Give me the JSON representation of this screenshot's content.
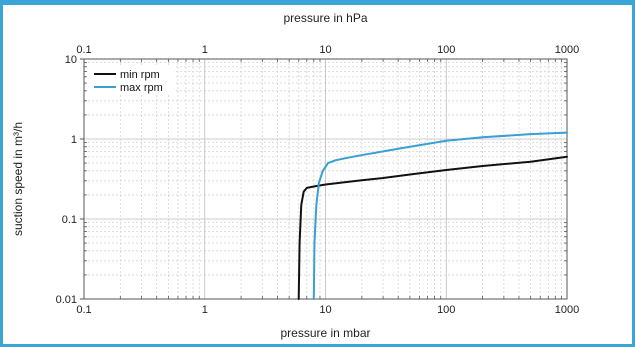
{
  "chart_data": {
    "type": "line",
    "x_scale": "log",
    "y_scale": "log",
    "xlim": [
      0.1,
      1000
    ],
    "ylim": [
      0.01,
      10
    ],
    "xlabel_bottom": "pressure in mbar",
    "xlabel_top": "pressure in hPa",
    "ylabel": "suction speed in m³/h",
    "x_ticks": [
      0.1,
      1,
      10,
      100,
      1000
    ],
    "x_tick_labels": [
      "0.1",
      "1",
      "10",
      "100",
      "1000"
    ],
    "y_ticks": [
      0.01,
      0.1,
      1,
      10
    ],
    "y_tick_labels": [
      "0.01",
      "0.1",
      "1",
      "10"
    ],
    "grid": true,
    "legend_placement": "top-left",
    "series": [
      {
        "name": "min rpm",
        "color": "#111111",
        "points": [
          [
            6.0,
            0.01
          ],
          [
            6.1,
            0.05
          ],
          [
            6.3,
            0.15
          ],
          [
            6.6,
            0.22
          ],
          [
            7.0,
            0.245
          ],
          [
            8.0,
            0.255
          ],
          [
            10,
            0.27
          ],
          [
            15,
            0.29
          ],
          [
            20,
            0.305
          ],
          [
            30,
            0.325
          ],
          [
            50,
            0.36
          ],
          [
            100,
            0.41
          ],
          [
            200,
            0.46
          ],
          [
            500,
            0.52
          ],
          [
            1000,
            0.6
          ]
        ]
      },
      {
        "name": "max rpm",
        "color": "#3a9fd4",
        "points": [
          [
            8.0,
            0.01
          ],
          [
            8.1,
            0.05
          ],
          [
            8.4,
            0.15
          ],
          [
            8.8,
            0.28
          ],
          [
            9.5,
            0.4
          ],
          [
            10.5,
            0.5
          ],
          [
            12,
            0.54
          ],
          [
            15,
            0.58
          ],
          [
            20,
            0.63
          ],
          [
            30,
            0.7
          ],
          [
            50,
            0.8
          ],
          [
            100,
            0.95
          ],
          [
            200,
            1.05
          ],
          [
            500,
            1.15
          ],
          [
            1000,
            1.2
          ]
        ]
      }
    ]
  }
}
